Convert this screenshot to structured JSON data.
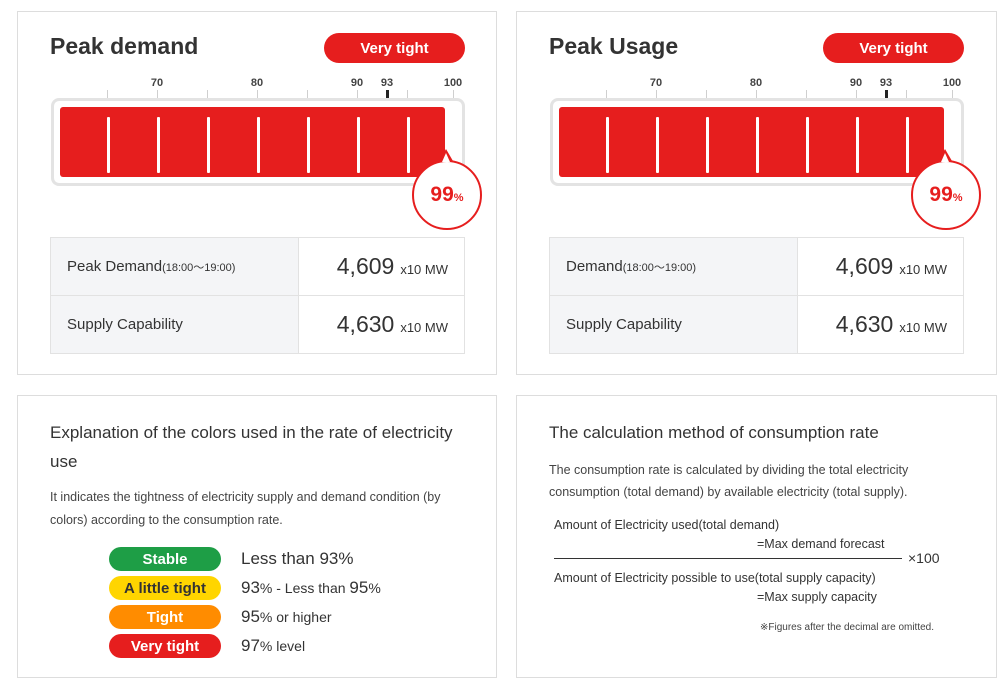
{
  "gauges": [
    {
      "title": "Peak demand",
      "status": "Very tight",
      "status_color": "#e61e1e",
      "usage_rate": "99",
      "usage_fraction": 0.99,
      "pct_unit": "%",
      "ticks": [
        "70",
        "80",
        "90",
        "93",
        "100"
      ],
      "row1_label": "Peak Demand",
      "row1_time": "(18:00～19:00)",
      "row1_value": "4,609",
      "row2_label": "Supply Capability",
      "row2_value": "4,630",
      "unit": "x10 MW"
    },
    {
      "title": "Peak Usage",
      "status": "Very tight",
      "status_color": "#e61e1e",
      "usage_rate": "99",
      "usage_fraction": 0.99,
      "pct_unit": "%",
      "ticks": [
        "70",
        "80",
        "90",
        "93",
        "100"
      ],
      "row1_label": "Demand",
      "row1_time": "(18:00～19:00)",
      "row1_value": "4,609",
      "row2_label": "Supply Capability",
      "row2_value": "4,630",
      "unit": "x10 MW"
    }
  ],
  "colors_card": {
    "title": "Explanation of the colors used in the rate of electricity use",
    "description": "It indicates the tightness of electricity supply and demand condition (by colors) according to the consumption rate.",
    "legend": [
      {
        "label": "Stable",
        "color": "#1e9e46",
        "text_color": "#ffffff",
        "n1": "Less than 93",
        "s1": "%",
        "n2": "",
        "s2": ""
      },
      {
        "label": "A little tight",
        "color": "#ffd500",
        "text_color": "#333333",
        "n1": "93",
        "s1": "% - Less than ",
        "n2": "95",
        "s2": "%"
      },
      {
        "label": "Tight",
        "color": "#ff8c00",
        "text_color": "#ffffff",
        "n1": "95",
        "s1": "% or higher",
        "n2": "",
        "s2": ""
      },
      {
        "label": "Very tight",
        "color": "#e61e1e",
        "text_color": "#ffffff",
        "n1": "97",
        "s1": "% level",
        "n2": "",
        "s2": ""
      }
    ]
  },
  "calc_card": {
    "title": "The calculation method of consumption rate",
    "description": "The consumption rate is calculated by dividing the total electricity consumption (total demand) by available electricity (total supply).",
    "numerator": "Amount of Electricity used(total demand)",
    "numerator_note": "=Max demand forecast",
    "multiplier": "×100",
    "denominator": "Amount of Electricity possible to use(total supply capacity)",
    "denominator_note": "=Max supply capacity",
    "footnote": "※Figures after the decimal are omitted."
  }
}
